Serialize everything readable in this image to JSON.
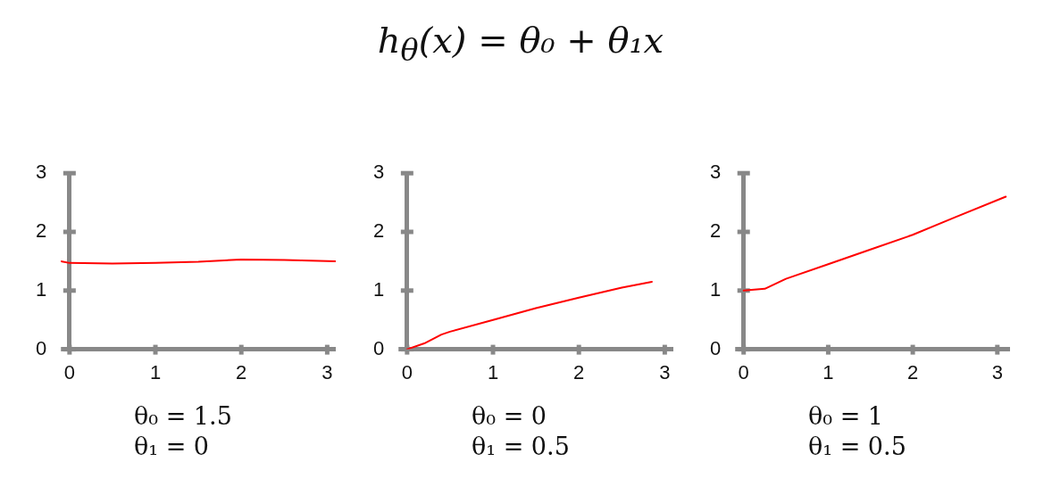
{
  "chart_data": [
    {
      "type": "line",
      "annotations": [
        "θ₀ = 1.5",
        "θ₁ = 0"
      ],
      "xlim": [
        -0.1,
        3.1
      ],
      "ylim": [
        0,
        3
      ],
      "xticks": [
        0,
        1,
        2,
        3
      ],
      "yticks": [
        0,
        1,
        2,
        3
      ],
      "grid": false,
      "legend": false,
      "marker": "none",
      "line_style": "solid",
      "series": [
        {
          "color": "#ff0000",
          "x": [
            -0.1,
            0,
            0.5,
            1,
            1.5,
            2,
            2.5,
            3.1
          ],
          "values": [
            1.5,
            1.47,
            1.46,
            1.47,
            1.49,
            1.53,
            1.52,
            1.5
          ]
        }
      ]
    },
    {
      "type": "line",
      "title": "h$_{θ}$(x) = θ₀ + θ₁x",
      "annotations": [
        "θ₀ = 0",
        "θ₁ = 0.5"
      ],
      "xlim": [
        -0.1,
        3.1
      ],
      "ylim": [
        0,
        3
      ],
      "xticks": [
        0,
        1,
        2,
        3
      ],
      "yticks": [
        0,
        1,
        2,
        3
      ],
      "grid": false,
      "legend": false,
      "marker": "none",
      "line_style": "solid",
      "series": [
        {
          "color": "#ff0000",
          "x": [
            0,
            0.2,
            0.4,
            0.5,
            1,
            1.5,
            2,
            2.5,
            2.85
          ],
          "values": [
            0,
            0.1,
            0.25,
            0.3,
            0.5,
            0.7,
            0.88,
            1.05,
            1.15
          ]
        }
      ]
    },
    {
      "type": "line",
      "annotations": [
        "θ₀ = 1",
        "θ₁ = 0.5"
      ],
      "xlim": [
        -0.1,
        3.15
      ],
      "ylim": [
        0,
        3
      ],
      "xticks": [
        0,
        1,
        2,
        3
      ],
      "yticks": [
        0,
        1,
        2,
        3
      ],
      "grid": false,
      "legend": false,
      "marker": "none",
      "line_style": "solid",
      "series": [
        {
          "color": "#ff0000",
          "x": [
            0,
            0.25,
            0.5,
            1,
            1.5,
            2,
            2.5,
            3.1
          ],
          "values": [
            1.0,
            1.03,
            1.2,
            1.45,
            1.7,
            1.95,
            2.25,
            2.6
          ]
        }
      ]
    }
  ]
}
